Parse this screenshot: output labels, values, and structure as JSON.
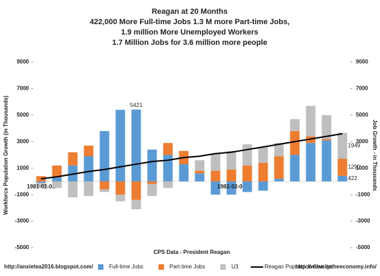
{
  "chart_data": {
    "type": "bar",
    "title": "Reagan at 20 Months",
    "subtitle": [
      "422,000 More Full-time Jobs 1.3 M more Part-time Jobs,",
      "1.9 million More Unemployed Workers",
      "1.7 Million Jobs for 3.6 million more people"
    ],
    "x_label": "CPS Data - President Reagan",
    "y_label": "Workforce Population Growth (in Thousands)",
    "y2_label": "Job Growth - in Thousands",
    "footer_left": "http://anxietea2016.blogspot.com/",
    "footer_right": "http://www.itstheeconomy.info/",
    "stacked": true,
    "categories": [
      "1981-02-01",
      null,
      null,
      null,
      null,
      null,
      null,
      null,
      null,
      null,
      null,
      null,
      "1982-02-01",
      null,
      null,
      null,
      null,
      null,
      null,
      null
    ],
    "series": [
      {
        "name": "Full-time Jobs",
        "color": "#5b9bd5",
        "values": [
          -100,
          300,
          1200,
          1900,
          3800,
          5400,
          5421,
          2400,
          2000,
          1300,
          600,
          -1000,
          -1000,
          -800,
          -700,
          200,
          2000,
          2900,
          3100,
          422
        ],
        "value_labels": [
          null,
          null,
          null,
          null,
          null,
          null,
          "5421",
          null,
          null,
          null,
          null,
          null,
          null,
          null,
          null,
          null,
          null,
          null,
          null,
          "422"
        ]
      },
      {
        "name": "Part-time Jobs",
        "color": "#ed7d31",
        "values": [
          400,
          900,
          1000,
          800,
          -600,
          -1000,
          -1400,
          -200,
          900,
          1000,
          200,
          800,
          900,
          1200,
          1400,
          1700,
          1800,
          500,
          100,
          1290
        ],
        "value_labels": [
          null,
          null,
          null,
          null,
          null,
          null,
          null,
          null,
          null,
          null,
          null,
          null,
          null,
          null,
          null,
          null,
          null,
          null,
          null,
          "1290"
        ]
      },
      {
        "name": "U3",
        "color": "#bfbfbf",
        "values": [
          -300,
          -500,
          -1200,
          -1100,
          -200,
          -500,
          -700,
          -900,
          -500,
          0,
          800,
          1300,
          1400,
          1600,
          1200,
          1000,
          900,
          2300,
          1800,
          1949
        ],
        "value_labels": [
          null,
          null,
          null,
          null,
          null,
          null,
          null,
          null,
          null,
          null,
          null,
          null,
          null,
          null,
          null,
          null,
          null,
          null,
          null,
          "1949"
        ]
      },
      {
        "name": "Reagan Population Change",
        "type": "line",
        "color": "#000000",
        "values": [
          200,
          350,
          550,
          750,
          900,
          1100,
          1300,
          1500,
          1600,
          1800,
          1900,
          2100,
          2200,
          2400,
          2600,
          2800,
          3000,
          3200,
          3400,
          3600
        ]
      }
    ],
    "ylim": [
      -5000,
      9000
    ],
    "yticks": [
      -5000,
      -3000,
      -1000,
      1000,
      3000,
      5000,
      7000,
      9000
    ],
    "y2lim": [
      -5000,
      9000
    ],
    "y2ticks": [
      -5000,
      -3000,
      -1000,
      1000,
      3000,
      5000,
      7000,
      9000
    ],
    "grid": false,
    "legend": "bottom"
  }
}
